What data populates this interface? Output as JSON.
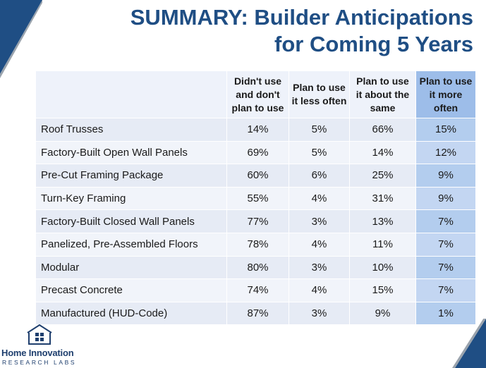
{
  "title": {
    "line1": "SUMMARY:  Builder Anticipations",
    "line2": "for Coming 5 Years"
  },
  "table": {
    "headers": [
      "Didn't use and don't plan to use",
      "Plan to use it less often",
      "Plan to use it about the same",
      "Plan to use it more often"
    ],
    "rows": [
      {
        "label": "Roof Trusses",
        "values": [
          "14%",
          "5%",
          "66%",
          "15%"
        ]
      },
      {
        "label": "Factory-Built Open Wall Panels",
        "values": [
          "69%",
          "5%",
          "14%",
          "12%"
        ]
      },
      {
        "label": "Pre-Cut Framing Package",
        "values": [
          "60%",
          "6%",
          "25%",
          "9%"
        ]
      },
      {
        "label": "Turn-Key Framing",
        "values": [
          "55%",
          "4%",
          "31%",
          "9%"
        ]
      },
      {
        "label": "Factory-Built Closed Wall Panels",
        "values": [
          "77%",
          "3%",
          "13%",
          "7%"
        ]
      },
      {
        "label": "Panelized, Pre-Assembled Floors",
        "values": [
          "78%",
          "4%",
          "11%",
          "7%"
        ]
      },
      {
        "label": "Modular",
        "values": [
          "80%",
          "3%",
          "10%",
          "7%"
        ]
      },
      {
        "label": "Precast Concrete",
        "values": [
          "74%",
          "4%",
          "15%",
          "7%"
        ]
      },
      {
        "label": "Manufactured (HUD-Code)",
        "values": [
          "87%",
          "3%",
          "9%",
          "1%"
        ]
      }
    ]
  },
  "logo": {
    "name": "Home Innovation",
    "sub": "RESEARCH LABS"
  },
  "colors": {
    "title": "#1f4e84",
    "header_highlight": "#9dbde9",
    "corner": "#1f4e84"
  }
}
